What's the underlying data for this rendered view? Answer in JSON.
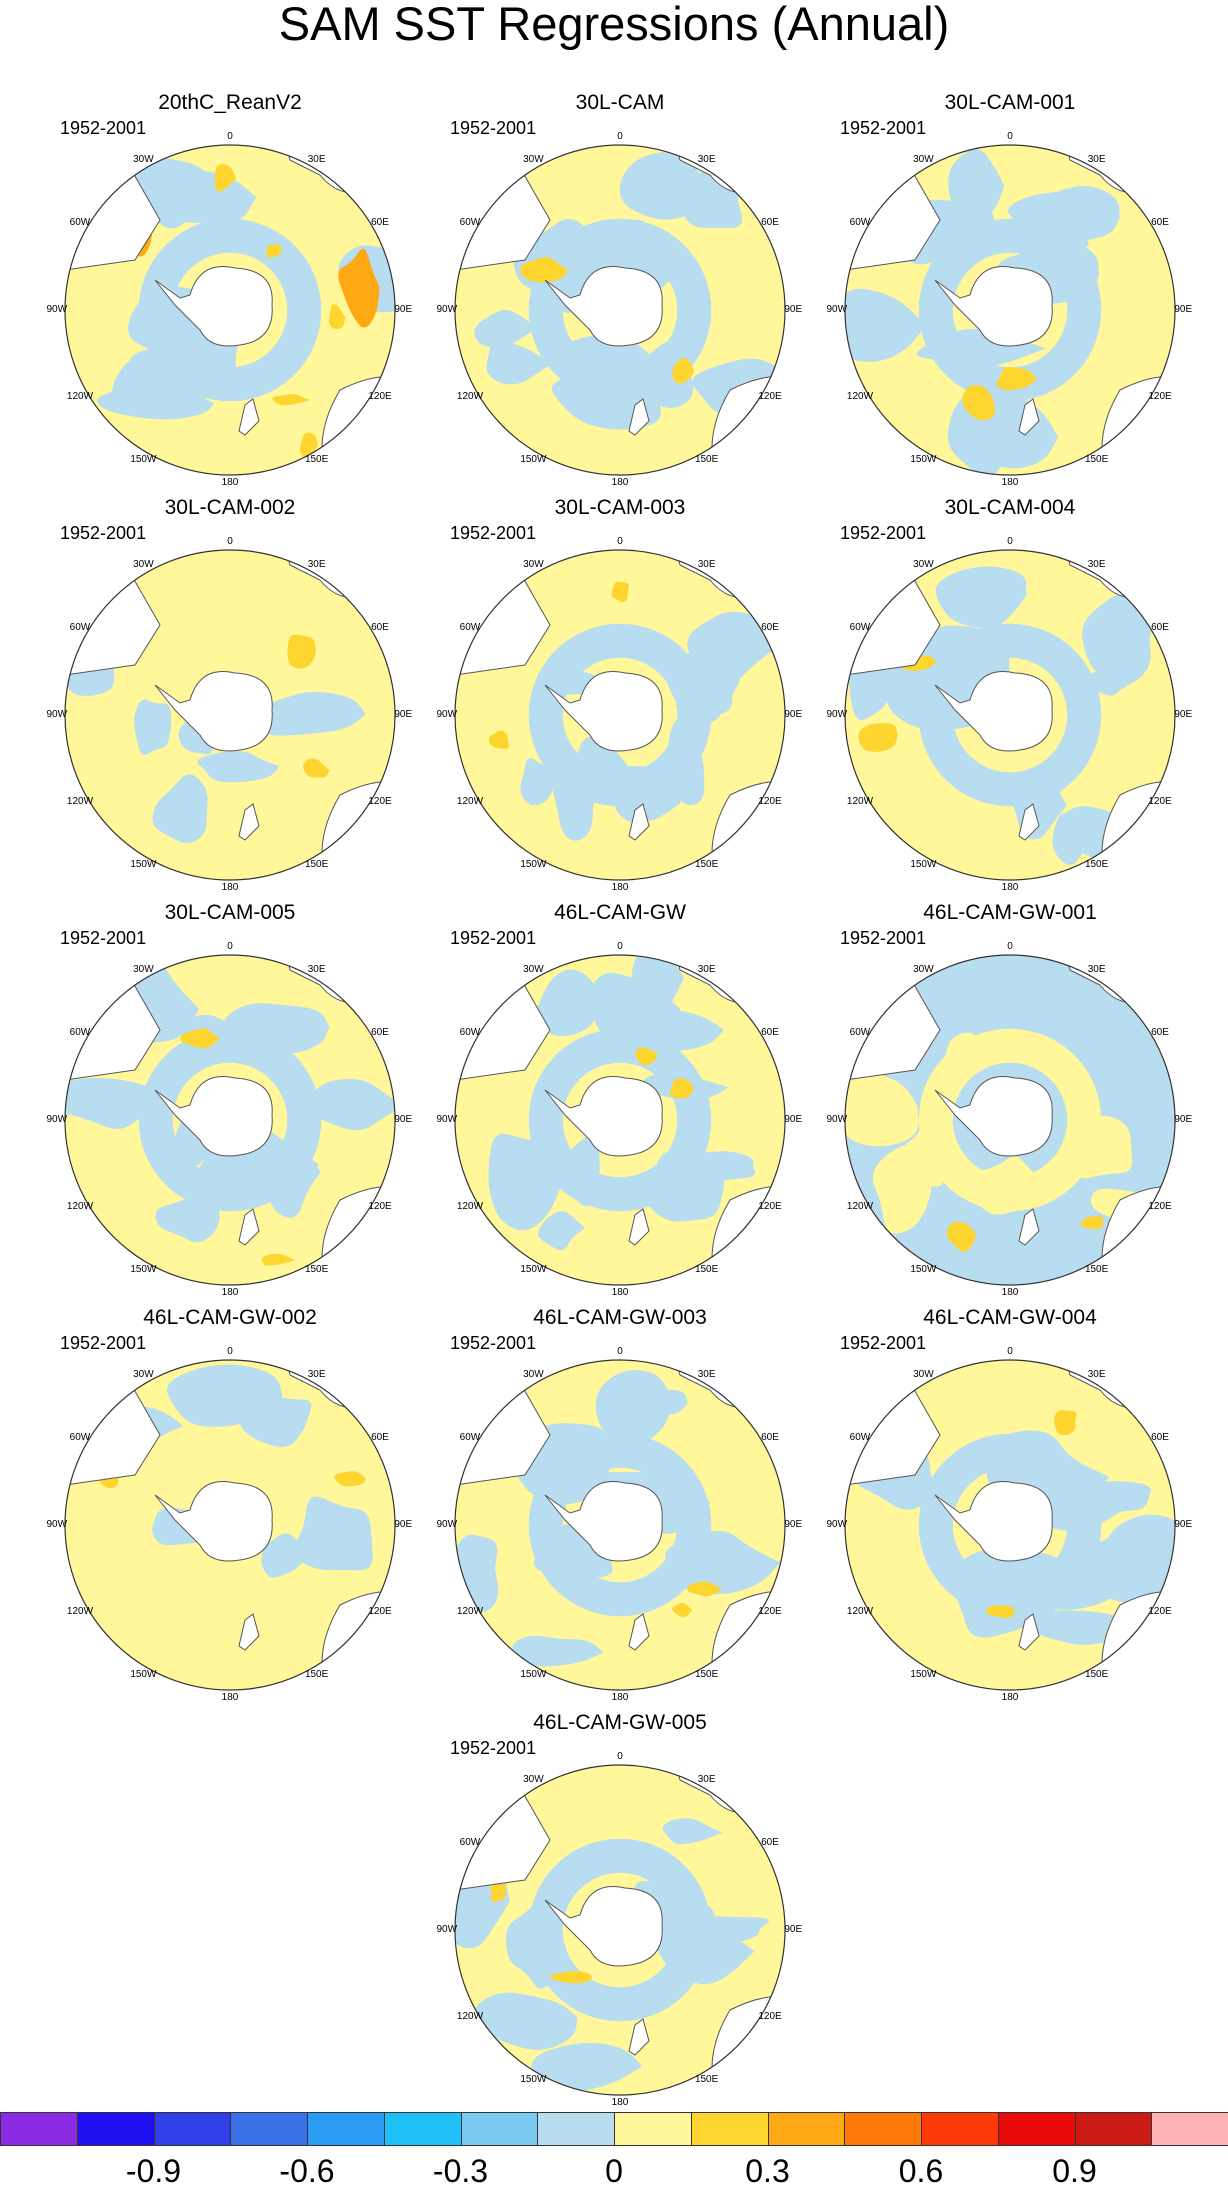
{
  "title": "SAM SST Regressions (Annual)",
  "period": "1952-2001",
  "longitude_labels": [
    "0",
    "30E",
    "60E",
    "90E",
    "120E",
    "150E",
    "180",
    "150W",
    "120W",
    "90W",
    "60W",
    "30W"
  ],
  "panels": [
    {
      "name": "20thC_ReanV2",
      "dominant": "mixed-warm"
    },
    {
      "name": "30L-CAM",
      "dominant": "mixed"
    },
    {
      "name": "30L-CAM-001",
      "dominant": "mixed"
    },
    {
      "name": "30L-CAM-002",
      "dominant": "warm"
    },
    {
      "name": "30L-CAM-003",
      "dominant": "mixed"
    },
    {
      "name": "30L-CAM-004",
      "dominant": "mixed"
    },
    {
      "name": "30L-CAM-005",
      "dominant": "mixed"
    },
    {
      "name": "46L-CAM-GW",
      "dominant": "mixed-cool"
    },
    {
      "name": "46L-CAM-GW-001",
      "dominant": "cool"
    },
    {
      "name": "46L-CAM-GW-002",
      "dominant": "warm"
    },
    {
      "name": "46L-CAM-GW-003",
      "dominant": "mixed"
    },
    {
      "name": "46L-CAM-GW-004",
      "dominant": "mixed"
    },
    {
      "name": "46L-CAM-GW-005",
      "dominant": "mixed"
    }
  ],
  "colorbar": {
    "colors": [
      "#8a2be2",
      "#1e10f0",
      "#3040e8",
      "#3a70e8",
      "#2b9cf3",
      "#1ec0f7",
      "#79c9f0",
      "#b8dcf0",
      "#fff799",
      "#fed52e",
      "#fea813",
      "#fe7a0a",
      "#fe3a08",
      "#ea0a08",
      "#cc1a14",
      "#ffb2b2"
    ],
    "labels": [
      "-0.9",
      "-0.6",
      "-0.3",
      "0",
      "0.3",
      "0.6",
      "0.9"
    ]
  },
  "colors": {
    "warm": "#fff799",
    "cool": "#b8dcf0",
    "land": "#ffffff",
    "orange": "#fed52e",
    "strong": "#fea813",
    "hot": "#ea0a08"
  }
}
